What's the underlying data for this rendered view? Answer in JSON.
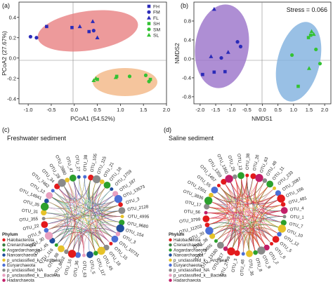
{
  "colors": {
    "fresh_blue": "#2b2bb8",
    "saline_green": "#33c233",
    "ellipse_red": "#e7787a",
    "ellipse_orange": "#f2b27c",
    "ellipse_purple": "#9a72c9",
    "ellipse_blue": "#7fb0de"
  },
  "chart_data": [
    {
      "type": "scatter",
      "panel": "(a)",
      "xlabel": "PCoA1 (54.52%)",
      "ylabel": "PCoA2 (27.67%)",
      "xlim": [
        -1.2,
        2.0
      ],
      "ylim": [
        -0.45,
        0.55
      ],
      "xticks": [
        "-1.0",
        "-0.5",
        "0.0",
        "0.5",
        "1.0",
        "1.5",
        "2.0"
      ],
      "yticks": [
        "-0.4",
        "-0.2",
        "0.0",
        "0.2",
        "0.4"
      ],
      "legend": {
        "placement": "top-right",
        "entries": [
          "FH",
          "FM",
          "FL",
          "SH",
          "SM",
          "SL"
        ]
      },
      "series": [
        {
          "name": "FH",
          "marker": "square",
          "color": "#2b2bb8",
          "points": [
            [
              -0.6,
              0.31
            ],
            [
              -0.05,
              0.3
            ],
            [
              0.32,
              0.26
            ]
          ]
        },
        {
          "name": "FM",
          "marker": "circle",
          "color": "#2b2bb8",
          "points": [
            [
              -0.95,
              0.21
            ],
            [
              -0.82,
              0.2
            ],
            [
              0.42,
              0.27
            ]
          ]
        },
        {
          "name": "FL",
          "marker": "triangle",
          "color": "#2b2bb8",
          "points": [
            [
              0.4,
              0.36
            ],
            [
              0.5,
              0.2
            ],
            [
              0.12,
              0.31
            ]
          ]
        },
        {
          "name": "SH",
          "marker": "square",
          "color": "#33c233",
          "points": [
            [
              0.5,
              -0.21
            ],
            [
              0.92,
              -0.18
            ],
            [
              1.65,
              -0.21
            ]
          ]
        },
        {
          "name": "SM",
          "marker": "circle",
          "color": "#33c233",
          "points": [
            [
              1.62,
              -0.23
            ],
            [
              1.55,
              -0.17
            ],
            [
              1.2,
              -0.18
            ]
          ]
        },
        {
          "name": "SL",
          "marker": "triangle",
          "color": "#33c233",
          "points": [
            [
              0.42,
              -0.22
            ],
            [
              0.47,
              -0.2
            ],
            [
              0.9,
              -0.19
            ]
          ]
        }
      ]
    },
    {
      "type": "scatter",
      "panel": "(b)",
      "title": "Stress = 0.066",
      "xlabel": "NMDS1",
      "ylabel": "NMDS2",
      "xlim": [
        -2.2,
        2.2
      ],
      "ylim": [
        -0.95,
        1.2
      ],
      "xticks": [
        "-2.0",
        "-1.5",
        "-1.0",
        "-0.5",
        "0.0",
        "0.5",
        "1.0",
        "1.5",
        "2.0"
      ],
      "yticks": [
        "-0.8",
        "-0.4",
        "0.0",
        "0.4",
        "0.8"
      ],
      "series": [
        {
          "name": "FH",
          "marker": "square",
          "color": "#2b2bb8",
          "points": [
            [
              -1.92,
              -0.33
            ],
            [
              -1.55,
              -0.28
            ],
            [
              -1.2,
              -0.27
            ]
          ]
        },
        {
          "name": "FM",
          "marker": "circle",
          "color": "#2b2bb8",
          "points": [
            [
              -1.32,
              0.02
            ],
            [
              -0.8,
              0.36
            ],
            [
              -0.7,
              0.26
            ]
          ]
        },
        {
          "name": "FL",
          "marker": "triangle",
          "color": "#2b2bb8",
          "points": [
            [
              -1.55,
              1.05
            ],
            [
              -1.65,
              0.05
            ],
            [
              -1.1,
              0.14
            ]
          ]
        },
        {
          "name": "SH",
          "marker": "square",
          "color": "#33c233",
          "points": [
            [
              1.55,
              0.5
            ],
            [
              1.48,
              0.45
            ],
            [
              1.15,
              -0.58
            ]
          ]
        },
        {
          "name": "SM",
          "marker": "circle",
          "color": "#33c233",
          "points": [
            [
              0.95,
              0.08
            ],
            [
              1.72,
              0.2
            ],
            [
              1.85,
              -0.1
            ]
          ]
        },
        {
          "name": "SL",
          "marker": "triangle",
          "color": "#33c233",
          "points": [
            [
              1.58,
              0.58
            ],
            [
              1.65,
              0.52
            ],
            [
              1.5,
              -0.2
            ]
          ]
        }
      ]
    },
    {
      "type": "network",
      "panel": "(c)",
      "title": "Freshwater sediment",
      "nodes": [
        "OTU_38",
        "OTU_105",
        "OTU_115",
        "OTU_21",
        "OTU_18",
        "OTU_1759",
        "OTU_187",
        "OTU_13573",
        "OTU_3",
        "OTU_2128",
        "OTU_4995",
        "OTU_9680",
        "OTU_154",
        "OTU_3",
        "OTU_10731",
        "OTU_15",
        "OTU_18",
        "OTU_45",
        "OTU_117",
        "OTU_5",
        "OTU_63",
        "OTU_36",
        "OTU_16",
        "OTU_8602",
        "OTU_88",
        "OTU_116",
        "OTU_45",
        "OTU_30",
        "OTU_6",
        "OTU_22",
        "OTU_355",
        "OTU_31",
        "OTU_35",
        "OTU_14941",
        "OTU_12",
        "OTU_7462",
        "OTU_34",
        "OTU_28",
        "OTU_2880",
        "OTU_47",
        "OTU_27"
      ]
    },
    {
      "type": "network",
      "panel": "(d)",
      "title": "Saline sediment",
      "nodes": [
        "OTU_38",
        "OTU_26",
        "OTU_63",
        "OTU_48",
        "OTU_11",
        "OTU_233",
        "OTU_2087",
        "OTU_166",
        "OTU_481",
        "OTU_4",
        "OTU_1",
        "OTU_7",
        "OTU_10",
        "OTU_12",
        "OTU_5",
        "OTU_6",
        "OTU_2",
        "OTU_9",
        "OTU_8",
        "OTU_36",
        "OTU_48",
        "OTU_3",
        "OTU_2799",
        "OTU_817",
        "OTU_13180",
        "OTU_3655",
        "OTU_38",
        "OTU_39",
        "OTU_11203",
        "OTU_3799",
        "OTU_56",
        "OTU_17",
        "OTU_3836",
        "OTU_1501",
        "OTU_55",
        "OTU_1457",
        "OTU_1359",
        "OTU_1360",
        "OTU_25",
        "OTU_13"
      ]
    }
  ],
  "phylum_legend": {
    "title": "Phylum",
    "entries": [
      {
        "label": "Halobacterota",
        "color": "#e31a1c"
      },
      {
        "label": "Crenarchaeota",
        "color": "#3a7d44"
      },
      {
        "label": "Asgardarchaeota",
        "color": "#2ca02c"
      },
      {
        "label": "Nanoarchaeota",
        "color": "#1f4e9c"
      },
      {
        "label": "p_unclassified_k__Archaea",
        "color": "#e6c229"
      },
      {
        "label": "Euryarchaeota",
        "color": "#4c6fd6"
      },
      {
        "label": "p_unclassified_NA",
        "color": "#8a8a8a"
      },
      {
        "label": "p_unclassified_k__Bacteria",
        "color": "#e8a0c0"
      },
      {
        "label": "Hadarchaeota",
        "color": "#c21e68"
      }
    ]
  }
}
